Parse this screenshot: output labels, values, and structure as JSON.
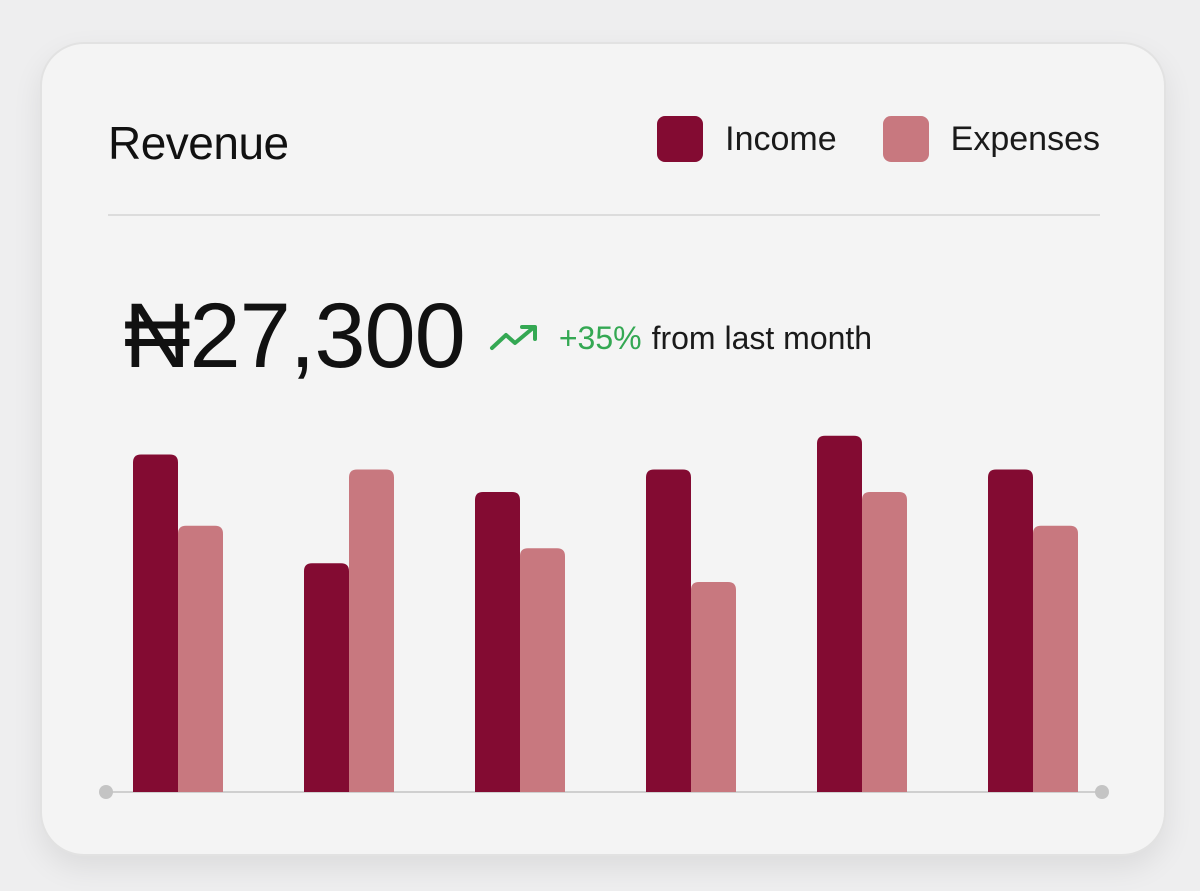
{
  "header": {
    "title": "Revenue"
  },
  "legend": [
    {
      "label": "Income",
      "color": "#830b32"
    },
    {
      "label": "Expenses",
      "color": "#c8787f"
    }
  ],
  "summary": {
    "amount": "₦27,300",
    "change_pct": "+35%",
    "change_text": "from last month",
    "trend_icon": "trend-up-icon",
    "positive_color": "#34a853"
  },
  "chart_data": {
    "type": "bar",
    "title": "Revenue",
    "xlabel": "",
    "ylabel": "",
    "categories": [
      "",
      "",
      "",
      "",
      "",
      ""
    ],
    "ylim": [
      0,
      100
    ],
    "grid": false,
    "legend_position": "top-right",
    "series": [
      {
        "name": "Income",
        "color": "#830b32",
        "values": [
          90,
          61,
          80,
          86,
          95,
          86
        ]
      },
      {
        "name": "Expenses",
        "color": "#c8787f",
        "values": [
          71,
          86,
          65,
          56,
          80,
          71
        ]
      }
    ]
  }
}
